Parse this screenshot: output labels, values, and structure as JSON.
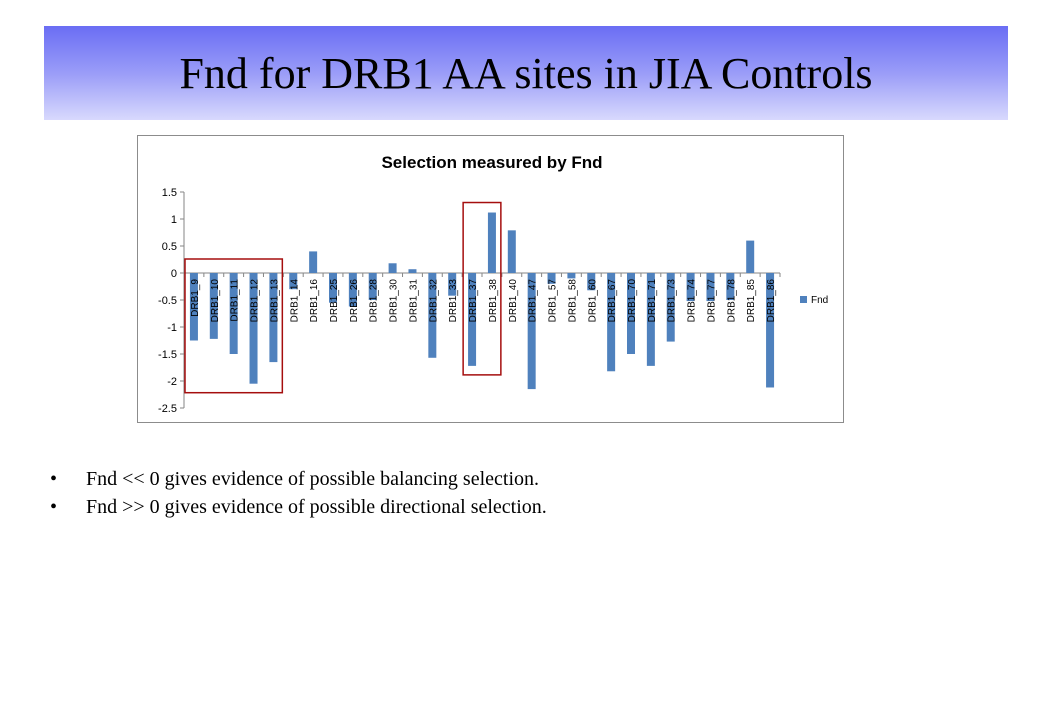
{
  "slide": {
    "title": "Fnd for DRB1 AA sites in JIA Controls",
    "bullets": [
      "Fnd << 0 gives evidence of possible balancing selection.",
      "Fnd >> 0 gives evidence of possible directional selection."
    ]
  },
  "chart_data": {
    "type": "bar",
    "title": "Selection measured by Fnd",
    "xlabel": "",
    "ylabel": "",
    "ylim": [
      -2.5,
      1.5
    ],
    "yticks": [
      1.5,
      1,
      0.5,
      0,
      -0.5,
      -1,
      -1.5,
      -2,
      -2.5
    ],
    "grid": false,
    "legend_position": "right",
    "bar_color": "#4f81bd",
    "highlight_color": "#a50e0e",
    "categories": [
      "DRB1_9",
      "DRB1_10",
      "DRB1_11",
      "DRB1_12",
      "DRB1_13",
      "DRB1_14",
      "DRB1_16",
      "DRB1_25",
      "DRB1_26",
      "DRB1_28",
      "DRB1_30",
      "DRB1_31",
      "DRB1_32",
      "DRB1_33",
      "DRB1_37",
      "DRB1_38",
      "DRB1_40",
      "DRB1_47",
      "DRB1_57",
      "DRB1_58",
      "DRB1_60",
      "DRB1_67",
      "DRB1_70",
      "DRB1_71",
      "DRB1_73",
      "DRB1_74",
      "DRB1_77",
      "DRB1_78",
      "DRB1_85",
      "DRB1_86"
    ],
    "series": [
      {
        "name": "Fnd",
        "values": [
          -1.25,
          -1.22,
          -1.5,
          -2.05,
          -1.65,
          -0.3,
          0.4,
          -0.55,
          -0.62,
          -0.5,
          0.18,
          0.07,
          -1.57,
          -0.42,
          -1.72,
          1.12,
          0.79,
          -2.15,
          -0.2,
          -0.1,
          -0.32,
          -1.82,
          -1.5,
          -1.72,
          -1.27,
          -0.52,
          -0.52,
          -0.5,
          0.6,
          -2.12
        ]
      }
    ],
    "highlight_groups": [
      {
        "from": "DRB1_9",
        "to": "DRB1_13"
      },
      {
        "from": "DRB1_37",
        "to": "DRB1_38"
      }
    ]
  }
}
